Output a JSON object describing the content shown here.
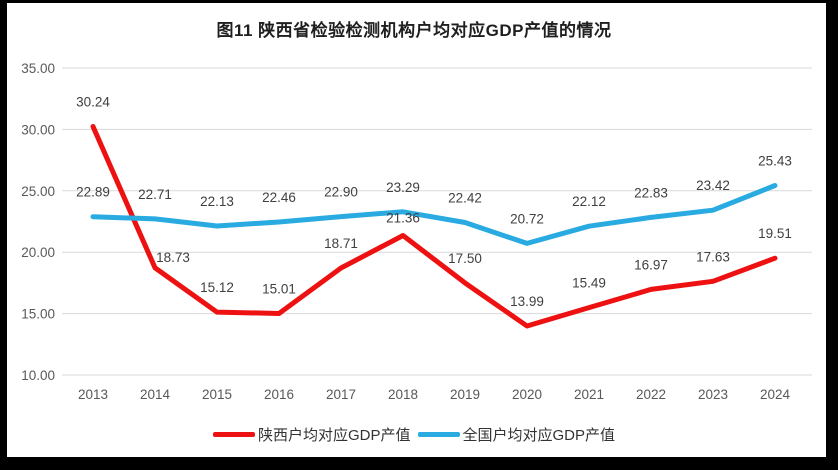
{
  "chart_data": {
    "type": "line",
    "title": "图11 陕西省检验检测机构户均对应GDP产值的情况",
    "x": [
      "2013",
      "2014",
      "2015",
      "2016",
      "2017",
      "2018",
      "2019",
      "2020",
      "2021",
      "2022",
      "2023",
      "2024"
    ],
    "series": [
      {
        "name": "陕西户均对应GDP产值",
        "color": "#ED1111",
        "values": [
          30.24,
          18.73,
          15.12,
          15.01,
          18.71,
          21.36,
          17.5,
          13.99,
          15.49,
          16.97,
          17.63,
          19.51
        ]
      },
      {
        "name": "全国户均对应GDP产值",
        "color": "#29ABE2",
        "values": [
          22.89,
          22.71,
          22.13,
          22.46,
          22.9,
          23.29,
          22.42,
          20.72,
          22.12,
          22.83,
          23.42,
          25.43
        ]
      }
    ],
    "ylim": [
      10,
      35
    ],
    "yticks": [
      10,
      15,
      20,
      25,
      30,
      35
    ],
    "ytick_labels": [
      "10.00",
      "15.00",
      "20.00",
      "25.00",
      "30.00",
      "35.00"
    ],
    "label_decimals": 2,
    "grid": "horizontal",
    "legend_position": "bottom",
    "colors": {
      "gridline": "#D9D9D9",
      "axis_text": "#595959",
      "data_label_text": "#404040",
      "frame_background": "#000000",
      "card_background": "#FFFFFF"
    }
  }
}
